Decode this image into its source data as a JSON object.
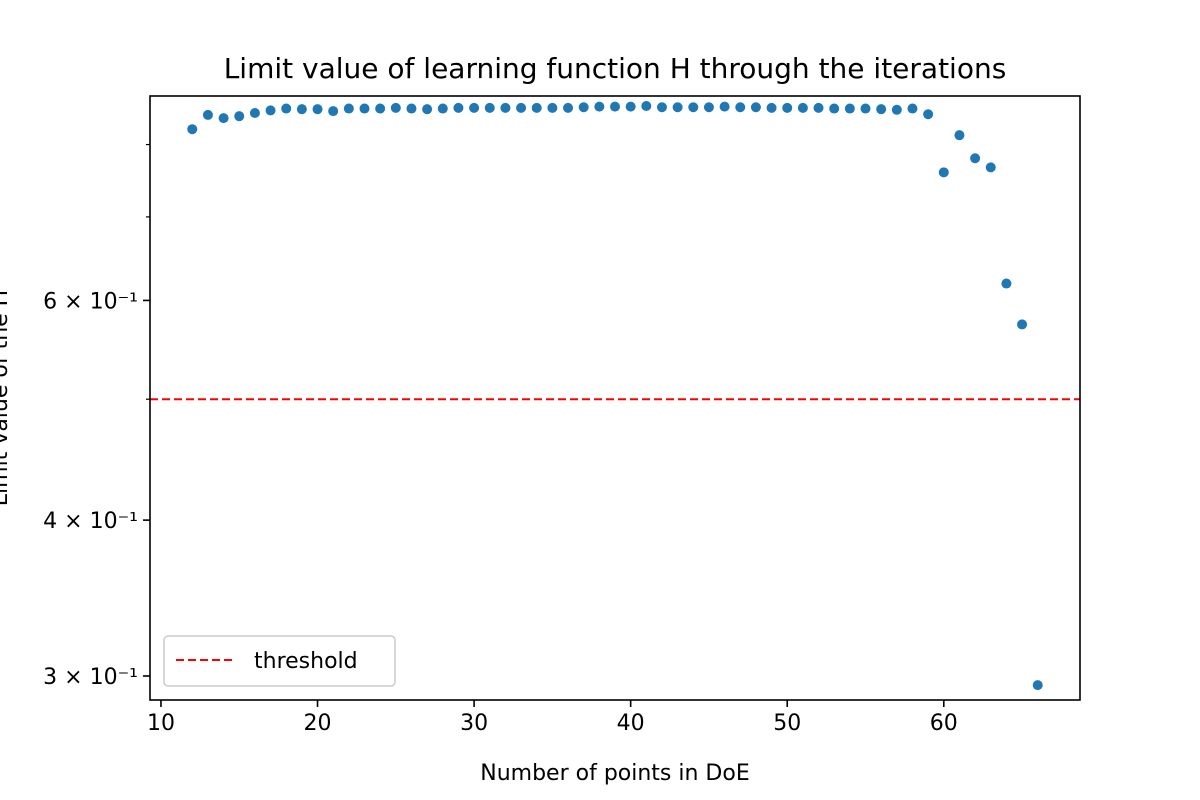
{
  "chart_data": {
    "type": "scatter",
    "title": "Limit value of learning function H through the iterations",
    "xlabel": "Number of points in DoE",
    "ylabel": "Limit value of the H",
    "xlim": [
      9.3,
      68.7
    ],
    "ylim": [
      0.287,
      0.875
    ],
    "yscale": "log",
    "x_ticks": [
      10,
      20,
      30,
      40,
      50,
      60
    ],
    "y_ticks_labeled": [
      {
        "value": 0.3,
        "label": "3 × 10⁻¹"
      },
      {
        "value": 0.4,
        "label": "4 × 10⁻¹"
      },
      {
        "value": 0.6,
        "label": "6 × 10⁻¹"
      }
    ],
    "y_ticks_minor": [
      0.5,
      0.7,
      0.8
    ],
    "grid": false,
    "legend": {
      "placement": "lower-left"
    },
    "series": [
      {
        "color": "#1f77b4",
        "x": [
          12,
          13,
          14,
          15,
          16,
          17,
          18,
          19,
          20,
          21,
          22,
          23,
          24,
          25,
          26,
          27,
          28,
          29,
          30,
          31,
          32,
          33,
          34,
          35,
          36,
          37,
          38,
          39,
          40,
          41,
          42,
          43,
          44,
          45,
          46,
          47,
          48,
          49,
          50,
          51,
          52,
          53,
          54,
          55,
          56,
          57,
          58,
          59,
          60,
          61,
          62,
          63,
          64,
          65,
          66
        ],
        "y": [
          0.823,
          0.845,
          0.84,
          0.843,
          0.848,
          0.852,
          0.855,
          0.854,
          0.854,
          0.851,
          0.855,
          0.855,
          0.855,
          0.856,
          0.855,
          0.854,
          0.855,
          0.856,
          0.856,
          0.856,
          0.856,
          0.856,
          0.856,
          0.856,
          0.856,
          0.857,
          0.858,
          0.858,
          0.858,
          0.859,
          0.857,
          0.857,
          0.857,
          0.857,
          0.858,
          0.857,
          0.857,
          0.856,
          0.856,
          0.856,
          0.856,
          0.855,
          0.855,
          0.855,
          0.854,
          0.853,
          0.855,
          0.846,
          0.76,
          0.814,
          0.78,
          0.767,
          0.619,
          0.574,
          0.295
        ]
      },
      {
        "name": "threshold",
        "type": "hline",
        "value": 0.5,
        "color": "#ff0000",
        "style": "dashed"
      }
    ]
  }
}
